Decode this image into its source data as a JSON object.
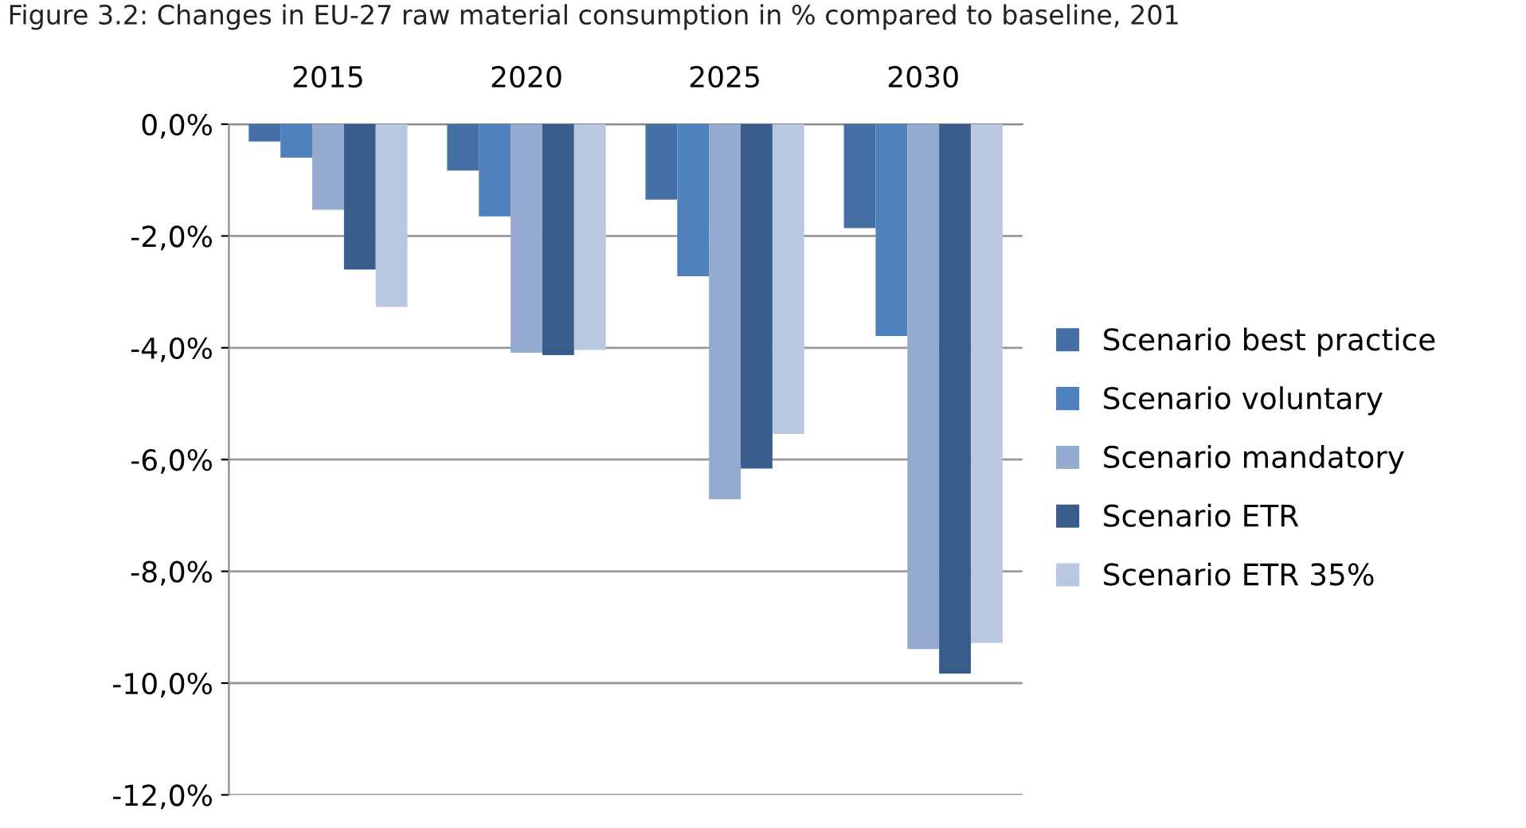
{
  "chart_data": {
    "type": "bar",
    "title": "Figure 3.2: Changes in EU-27 raw material consumption in % compared to baseline, 201",
    "categories": [
      "2015",
      "2020",
      "2025",
      "2030"
    ],
    "series": [
      {
        "name": "Scenario best practice",
        "color": "#4470a6",
        "values": [
          -0.31,
          -0.83,
          -1.35,
          -1.86
        ]
      },
      {
        "name": "Scenario voluntary",
        "color": "#4f81bd",
        "values": [
          -0.6,
          -1.65,
          -2.72,
          -3.79
        ]
      },
      {
        "name": "Scenario mandatory",
        "color": "#95aad0",
        "values": [
          -1.53,
          -4.09,
          -6.71,
          -9.39
        ]
      },
      {
        "name": "Scenario ETR",
        "color": "#385d8a",
        "values": [
          -2.6,
          -4.13,
          -6.16,
          -9.83
        ]
      },
      {
        "name": "Scenario ETR 35%",
        "color": "#b9c7e0",
        "values": [
          -3.27,
          -4.04,
          -5.54,
          -9.28
        ]
      }
    ],
    "ylim": [
      -12,
      0
    ],
    "yticks": [
      {
        "value": -12,
        "label": "-12,0%"
      },
      {
        "value": -10,
        "label": "-10,0%"
      },
      {
        "value": -8,
        "label": "-8,0%"
      },
      {
        "value": -6,
        "label": "-6,0%"
      },
      {
        "value": -4,
        "label": "-4,0%"
      },
      {
        "value": -2,
        "label": "-2,0%"
      },
      {
        "value": 0,
        "label": "0,0%"
      }
    ],
    "grid": "y",
    "legend": "right"
  }
}
